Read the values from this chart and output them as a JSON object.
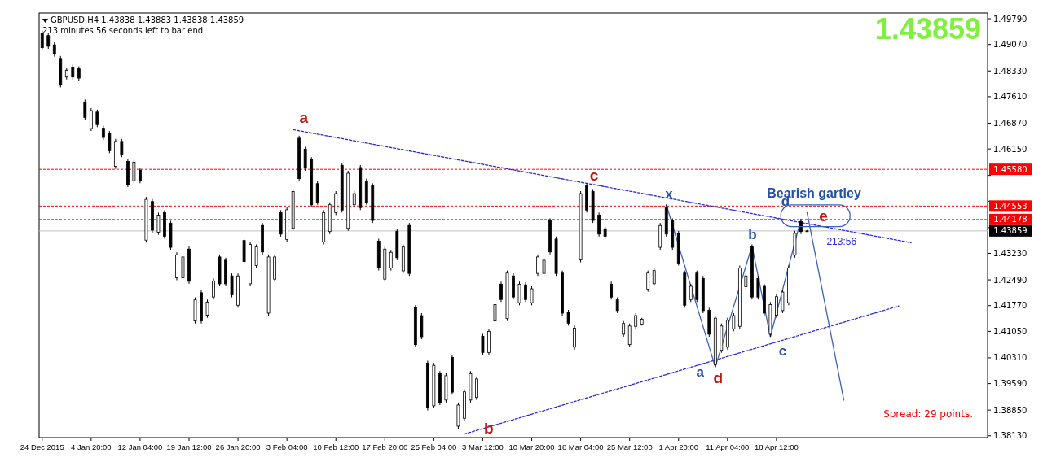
{
  "chart_data": {
    "type": "candlestick",
    "title": "GBPUSD,H4 1.43838 1.43883 1.43838 1.43859",
    "subtitle": "213 minutes 56 seconds left to bar end",
    "color": "#000000",
    "categories": [
      "24 Dec 2015",
      null,
      null,
      null,
      null,
      null,
      null,
      null,
      "4 Jan 20:00",
      null,
      null,
      null,
      null,
      null,
      null,
      null,
      "12 Jan 04:00",
      null,
      null,
      null,
      null,
      null,
      null,
      null,
      "19 Jan 12:00",
      null,
      null,
      null,
      null,
      null,
      null,
      null,
      "26 Jan 20:00",
      null,
      null,
      null,
      null,
      null,
      null,
      null,
      "3 Feb 04:00",
      null,
      null,
      null,
      null,
      null,
      null,
      null,
      "10 Feb 12:00",
      null,
      null,
      null,
      null,
      null,
      null,
      null,
      "17 Feb 20:00",
      null,
      null,
      null,
      null,
      null,
      null,
      null,
      "25 Feb 04:00",
      null,
      null,
      null,
      null,
      null,
      null,
      null,
      "3 Mar 12:00",
      null,
      null,
      null,
      null,
      null,
      null,
      null,
      "10 Mar 20:00",
      null,
      null,
      null,
      null,
      null,
      null,
      null,
      "18 Mar 04:00",
      null,
      null,
      null,
      null,
      null,
      null,
      null,
      "25 Mar 12:00",
      null,
      null,
      null,
      null,
      null,
      null,
      null,
      "1 Apr 20:00",
      null,
      null,
      null,
      null,
      null,
      null,
      null,
      "11 Apr 04:00",
      null,
      null,
      null,
      null,
      null,
      null,
      null,
      "18 Apr 12:00",
      null,
      null,
      null,
      null,
      null,
      null,
      null,
      null,
      null,
      null,
      null,
      null,
      null,
      null,
      null,
      null,
      null,
      null,
      null,
      null,
      null,
      null,
      null,
      null,
      null,
      null,
      null,
      null,
      null,
      null,
      null,
      null,
      null,
      null
    ],
    "ohlc": [
      [
        1.4939,
        1.4946,
        1.4891,
        1.4898
      ],
      [
        1.4932,
        1.4939,
        1.4895,
        1.4902
      ],
      [
        1.4906,
        1.4913,
        1.4873,
        1.488
      ],
      [
        1.4868,
        1.4875,
        1.4787,
        1.4794
      ],
      [
        1.4816,
        1.4842,
        1.4809,
        1.4835
      ],
      [
        1.4844,
        1.4851,
        1.4809,
        1.4816
      ],
      [
        1.4839,
        1.4846,
        1.4806,
        1.4813
      ],
      [
        1.4746,
        1.4753,
        1.4696,
        1.4703
      ],
      [
        1.4672,
        1.4729,
        1.4665,
        1.4722
      ],
      [
        1.4718,
        1.4725,
        1.4676,
        1.4683
      ],
      [
        1.4673,
        1.468,
        1.464,
        1.4647
      ],
      [
        1.4658,
        1.4665,
        1.4603,
        1.461
      ],
      [
        1.4566,
        1.4643,
        1.4559,
        1.4636
      ],
      [
        1.4636,
        1.4643,
        1.4592,
        1.4599
      ],
      [
        1.458,
        1.4587,
        1.4508,
        1.4515
      ],
      [
        1.4526,
        1.4585,
        1.4519,
        1.4578
      ],
      [
        1.4556,
        1.4563,
        1.4519,
        1.4526
      ],
      [
        1.436,
        1.4481,
        1.4353,
        1.4474
      ],
      [
        1.4468,
        1.4475,
        1.4381,
        1.4388
      ],
      [
        1.4382,
        1.4437,
        1.4375,
        1.443
      ],
      [
        1.4437,
        1.4444,
        1.4364,
        1.4371
      ],
      [
        1.4407,
        1.4414,
        1.4333,
        1.434
      ],
      [
        1.4255,
        1.4326,
        1.4248,
        1.4319
      ],
      [
        1.4255,
        1.432,
        1.4248,
        1.4313
      ],
      [
        1.4335,
        1.4342,
        1.4238,
        1.4245
      ],
      [
        1.4134,
        1.42,
        1.4127,
        1.4193
      ],
      [
        1.4213,
        1.422,
        1.4127,
        1.4134
      ],
      [
        1.415,
        1.4194,
        1.4143,
        1.4187
      ],
      [
        1.4201,
        1.4253,
        1.4194,
        1.4246
      ],
      [
        1.4313,
        1.432,
        1.4231,
        1.4238
      ],
      [
        1.4304,
        1.4311,
        1.4231,
        1.4238
      ],
      [
        1.426,
        1.4267,
        1.42,
        1.4207
      ],
      [
        1.4178,
        1.4267,
        1.4171,
        1.426
      ],
      [
        1.4359,
        1.4366,
        1.4293,
        1.43
      ],
      [
        1.4238,
        1.4355,
        1.4231,
        1.4348
      ],
      [
        1.4289,
        1.4348,
        1.4282,
        1.4341
      ],
      [
        1.4401,
        1.4408,
        1.432,
        1.4327
      ],
      [
        1.4156,
        1.432,
        1.4149,
        1.4313
      ],
      [
        1.4251,
        1.432,
        1.4244,
        1.4313
      ],
      [
        1.4437,
        1.4444,
        1.437,
        1.4377
      ],
      [
        1.4362,
        1.4452,
        1.4355,
        1.4445
      ],
      [
        1.4393,
        1.4503,
        1.4386,
        1.4496
      ],
      [
        1.4645,
        1.4652,
        1.4525,
        1.4532
      ],
      [
        1.4614,
        1.4621,
        1.4554,
        1.4561
      ],
      [
        1.4585,
        1.4592,
        1.4452,
        1.4459
      ],
      [
        1.4518,
        1.4525,
        1.4459,
        1.4466
      ],
      [
        1.4355,
        1.4444,
        1.4348,
        1.4437
      ],
      [
        1.4384,
        1.4466,
        1.4377,
        1.4459
      ],
      [
        1.4437,
        1.4497,
        1.443,
        1.449
      ],
      [
        1.4569,
        1.4576,
        1.4437,
        1.4444
      ],
      [
        1.4393,
        1.4554,
        1.4386,
        1.4547
      ],
      [
        1.4459,
        1.4497,
        1.4452,
        1.449
      ],
      [
        1.4563,
        1.457,
        1.4444,
        1.4451
      ],
      [
        1.4525,
        1.4532,
        1.4459,
        1.4466
      ],
      [
        1.4512,
        1.4519,
        1.4408,
        1.4415
      ],
      [
        1.4357,
        1.4364,
        1.4275,
        1.4282
      ],
      [
        1.4251,
        1.4342,
        1.4244,
        1.4335
      ],
      [
        1.4282,
        1.4333,
        1.4275,
        1.4326
      ],
      [
        1.4385,
        1.4392,
        1.4304,
        1.4311
      ],
      [
        1.4274,
        1.4348,
        1.4267,
        1.4341
      ],
      [
        1.4401,
        1.4408,
        1.426,
        1.4267
      ],
      [
        1.4171,
        1.4178,
        1.4061,
        1.4068
      ],
      [
        1.4149,
        1.4156,
        1.4083,
        1.409
      ],
      [
        1.4016,
        1.4023,
        1.3884,
        1.3891
      ],
      [
        1.3897,
        1.4017,
        1.389,
        1.401
      ],
      [
        1.3987,
        1.3994,
        1.3899,
        1.3906
      ],
      [
        1.3913,
        1.3988,
        1.3906,
        1.3981
      ],
      [
        1.4032,
        1.4039,
        1.3928,
        1.3935
      ],
      [
        1.384,
        1.3906,
        1.3833,
        1.3899
      ],
      [
        1.3862,
        1.3943,
        1.3855,
        1.3936
      ],
      [
        1.3913,
        1.3994,
        1.3906,
        1.3987
      ],
      [
        1.392,
        1.3979,
        1.3913,
        1.3972
      ],
      [
        1.4091,
        1.4098,
        1.4039,
        1.4046
      ],
      [
        1.4046,
        1.4112,
        1.4039,
        1.4105
      ],
      [
        1.4134,
        1.4187,
        1.4127,
        1.418
      ],
      [
        1.4237,
        1.4244,
        1.4187,
        1.4194
      ],
      [
        1.4141,
        1.4275,
        1.4134,
        1.4268
      ],
      [
        1.426,
        1.4267,
        1.4194,
        1.4201
      ],
      [
        1.4185,
        1.4244,
        1.4178,
        1.4237
      ],
      [
        1.4235,
        1.4242,
        1.4187,
        1.4194
      ],
      [
        1.4185,
        1.4231,
        1.4178,
        1.4224
      ],
      [
        1.4267,
        1.432,
        1.426,
        1.4313
      ],
      [
        1.4267,
        1.4311,
        1.426,
        1.4304
      ],
      [
        1.4414,
        1.4421,
        1.432,
        1.4327
      ],
      [
        1.4363,
        1.437,
        1.426,
        1.4267
      ],
      [
        1.4268,
        1.4275,
        1.4149,
        1.4156
      ],
      [
        1.4158,
        1.4165,
        1.4121,
        1.4128
      ],
      [
        1.4061,
        1.4121,
        1.4054,
        1.4114
      ],
      [
        1.4305,
        1.4497,
        1.4298,
        1.449
      ],
      [
        1.4512,
        1.4519,
        1.4437,
        1.4444
      ],
      [
        1.4496,
        1.4503,
        1.4408,
        1.4415
      ],
      [
        1.443,
        1.4437,
        1.437,
        1.4377
      ],
      [
        1.4392,
        1.4399,
        1.4364,
        1.4371
      ],
      [
        1.4237,
        1.4244,
        1.4194,
        1.4201
      ],
      [
        1.4193,
        1.42,
        1.4156,
        1.4163
      ],
      [
        1.4097,
        1.4134,
        1.409,
        1.4127
      ],
      [
        1.4068,
        1.4127,
        1.4061,
        1.412
      ],
      [
        1.4119,
        1.4156,
        1.4112,
        1.4149
      ],
      [
        1.4125,
        1.4143,
        1.4121,
        1.4139
      ],
      [
        1.4223,
        1.4275,
        1.4216,
        1.4268
      ],
      [
        1.4238,
        1.4282,
        1.4231,
        1.4275
      ],
      [
        1.434,
        1.4408,
        1.4333,
        1.4401
      ],
      [
        1.4452,
        1.4459,
        1.437,
        1.4377
      ],
      [
        1.4414,
        1.4421,
        1.4333,
        1.434
      ],
      [
        1.4379,
        1.4386,
        1.4289,
        1.4296
      ],
      [
        1.4268,
        1.4275,
        1.4171,
        1.4178
      ],
      [
        1.4194,
        1.4238,
        1.4187,
        1.4231
      ],
      [
        1.4268,
        1.4275,
        1.4187,
        1.4194
      ],
      [
        1.4253,
        1.426,
        1.4156,
        1.4163
      ],
      [
        1.4164,
        1.4171,
        1.409,
        1.4097
      ],
      [
        1.4012,
        1.4149,
        1.4005,
        1.4142
      ],
      [
        1.4052,
        1.4127,
        1.4045,
        1.412
      ],
      [
        1.4061,
        1.4143,
        1.4054,
        1.4136
      ],
      [
        1.4112,
        1.4156,
        1.4105,
        1.4149
      ],
      [
        1.4119,
        1.4289,
        1.4112,
        1.4282
      ],
      [
        1.423,
        1.4267,
        1.4223,
        1.426
      ],
      [
        1.4341,
        1.4348,
        1.4194,
        1.4201
      ],
      [
        1.4253,
        1.426,
        1.4194,
        1.4201
      ],
      [
        1.4231,
        1.4238,
        1.4149,
        1.4156
      ],
      [
        1.4097,
        1.4187,
        1.409,
        1.418
      ],
      [
        1.415,
        1.4209,
        1.4143,
        1.4202
      ],
      [
        1.4163,
        1.4222,
        1.4156,
        1.4215
      ],
      [
        1.4185,
        1.4289,
        1.4178,
        1.4282
      ],
      [
        1.4318,
        1.4386,
        1.4311,
        1.4379
      ],
      [
        1.4412,
        1.4419,
        1.4377,
        1.4384
      ],
      [
        1.43838,
        1.43883,
        1.43838,
        1.43859
      ],
      null,
      null,
      null,
      null,
      null,
      null,
      null,
      null,
      null,
      null,
      null,
      null,
      null,
      null,
      null,
      null,
      null,
      null,
      null,
      null,
      null,
      null,
      null,
      null,
      null,
      null,
      null,
      null,
      null
    ],
    "series": [
      {
        "type": "line",
        "color": "#2a2ae0",
        "line_style": "dashed",
        "values": [
          null,
          null,
          null,
          null,
          null,
          null,
          null,
          null,
          null,
          null,
          null,
          null,
          null,
          null,
          null,
          null,
          null,
          null,
          null,
          null,
          null,
          null,
          null,
          null,
          null,
          null,
          null,
          null,
          null,
          null,
          null,
          null,
          null,
          null,
          null,
          null,
          null,
          null,
          null,
          null,
          null,
          1.4669,
          null,
          null,
          null,
          null,
          null,
          null,
          null,
          null,
          null,
          null,
          null,
          null,
          null,
          null,
          null,
          null,
          null,
          null,
          null,
          null,
          null,
          null,
          null,
          null,
          null,
          null,
          null,
          null,
          null,
          null,
          null,
          null,
          null,
          null,
          null,
          null,
          null,
          null,
          null,
          null,
          null,
          null,
          null,
          null,
          null,
          null,
          null,
          null,
          null,
          null,
          null,
          null,
          null,
          null,
          null,
          null,
          null,
          null,
          null,
          null,
          null,
          null,
          null,
          null,
          null,
          null,
          null,
          null,
          null,
          null,
          null,
          null,
          null,
          null,
          null,
          null,
          null,
          null,
          null,
          null,
          null,
          null,
          null,
          null,
          null,
          null,
          null,
          null,
          null,
          null,
          null,
          null,
          null,
          null,
          null,
          null,
          null,
          null,
          null,
          null,
          1.4353,
          null,
          null,
          null,
          null,
          null,
          null,
          null,
          null,
          null,
          null,
          null,
          null
        ]
      },
      {
        "type": "line",
        "color": "#2a2ae0",
        "line_style": "dashed",
        "values": [
          null,
          null,
          null,
          null,
          null,
          null,
          null,
          null,
          null,
          null,
          null,
          null,
          null,
          null,
          null,
          null,
          null,
          null,
          null,
          null,
          null,
          null,
          null,
          null,
          null,
          null,
          null,
          null,
          null,
          null,
          null,
          null,
          null,
          null,
          null,
          null,
          null,
          null,
          null,
          null,
          null,
          null,
          null,
          null,
          null,
          null,
          null,
          null,
          null,
          null,
          null,
          null,
          null,
          null,
          null,
          null,
          null,
          null,
          null,
          null,
          null,
          null,
          null,
          null,
          null,
          null,
          null,
          null,
          null,
          1.3818,
          null,
          null,
          null,
          null,
          null,
          null,
          null,
          null,
          null,
          null,
          null,
          null,
          null,
          null,
          null,
          null,
          null,
          null,
          null,
          null,
          null,
          null,
          null,
          null,
          null,
          null,
          null,
          null,
          null,
          null,
          null,
          null,
          null,
          null,
          null,
          null,
          null,
          null,
          null,
          null,
          null,
          null,
          null,
          null,
          null,
          null,
          null,
          null,
          null,
          null,
          null,
          null,
          null,
          null,
          null,
          null,
          null,
          null,
          null,
          null,
          null,
          null,
          null,
          null,
          null,
          null,
          null,
          null,
          null,
          null,
          1.4176,
          null,
          null,
          null,
          null,
          null,
          null,
          null,
          null,
          null,
          null,
          null,
          null,
          null,
          null
        ]
      },
      {
        "type": "line",
        "color": "#3a62b8",
        "line_style": "solid",
        "values": [
          null,
          null,
          null,
          null,
          null,
          null,
          null,
          null,
          null,
          null,
          null,
          null,
          null,
          null,
          null,
          null,
          null,
          null,
          null,
          null,
          null,
          null,
          null,
          null,
          null,
          null,
          null,
          null,
          null,
          null,
          null,
          null,
          null,
          null,
          null,
          null,
          null,
          null,
          null,
          null,
          null,
          null,
          null,
          null,
          null,
          null,
          null,
          null,
          null,
          null,
          null,
          null,
          null,
          null,
          null,
          null,
          null,
          null,
          null,
          null,
          null,
          null,
          null,
          null,
          null,
          null,
          null,
          null,
          null,
          null,
          null,
          null,
          null,
          null,
          null,
          null,
          null,
          null,
          null,
          null,
          null,
          null,
          null,
          null,
          null,
          null,
          null,
          null,
          null,
          null,
          null,
          null,
          null,
          null,
          null,
          null,
          null,
          null,
          null,
          null,
          null,
          null,
          1.4459,
          null,
          null,
          null,
          null,
          null,
          null,
          null,
          1.4005,
          null,
          null,
          null,
          null,
          null,
          1.4344,
          null,
          null,
          1.409,
          null,
          null,
          null,
          null,
          1.4419,
          null,
          null,
          null,
          null,
          null,
          null,
          null,
          null,
          null,
          null,
          null,
          null,
          null,
          null,
          null,
          null,
          null,
          null,
          null,
          null,
          null,
          null,
          null,
          null,
          null,
          null,
          null,
          null,
          null,
          null
        ]
      },
      {
        "type": "line",
        "color": "#3a62b8",
        "line_style": "solid",
        "values": [
          null,
          null,
          null,
          null,
          null,
          null,
          null,
          null,
          null,
          null,
          null,
          null,
          null,
          null,
          null,
          null,
          null,
          null,
          null,
          null,
          null,
          null,
          null,
          null,
          null,
          null,
          null,
          null,
          null,
          null,
          null,
          null,
          null,
          null,
          null,
          null,
          null,
          null,
          null,
          null,
          null,
          null,
          null,
          null,
          null,
          null,
          null,
          null,
          null,
          null,
          null,
          null,
          null,
          null,
          null,
          null,
          null,
          null,
          null,
          null,
          null,
          null,
          null,
          null,
          null,
          null,
          null,
          null,
          null,
          null,
          null,
          null,
          null,
          null,
          null,
          null,
          null,
          null,
          null,
          null,
          null,
          null,
          null,
          null,
          null,
          null,
          null,
          null,
          null,
          null,
          null,
          null,
          null,
          null,
          null,
          null,
          null,
          null,
          null,
          null,
          null,
          null,
          null,
          null,
          null,
          null,
          null,
          null,
          null,
          null,
          null,
          null,
          null,
          null,
          null,
          null,
          null,
          null,
          null,
          null,
          null,
          null,
          null,
          null,
          null,
          1.4437,
          null,
          null,
          null,
          null,
          null,
          1.3913,
          null,
          null,
          null,
          null,
          null,
          null,
          null,
          null,
          null,
          null,
          null,
          null,
          null,
          null,
          null,
          null,
          null,
          null,
          null,
          null,
          null,
          null,
          null
        ]
      }
    ],
    "ref_lines": [
      {
        "axis": "y",
        "value": 1.4558,
        "label": "1.45580",
        "color": "#ff0000",
        "line_style": "dashed"
      },
      {
        "axis": "y",
        "value": 1.44553,
        "label": "1.44553",
        "color": "#ff0000",
        "line_style": "dashed"
      },
      {
        "axis": "y",
        "value": 1.44178,
        "label": "1.44178",
        "color": "#ff0000",
        "line_style": "dashed"
      },
      {
        "axis": "y",
        "value": 1.43859,
        "label": "1.43859",
        "color": "#c0c0c0",
        "line_style": "solid"
      }
    ],
    "annotations": [
      "a",
      "b",
      "c",
      "d",
      "e",
      "x",
      "a",
      "b",
      "c",
      "d",
      "Bearish gartley",
      "213:56",
      "1.43859",
      "Spread: 29 points."
    ],
    "ylim": [
      1.3808,
      1.4995
    ],
    "yticks": [
      {
        "value": 1.4979,
        "label": "1.49790"
      },
      {
        "value": 1.4907,
        "label": "1.49070"
      },
      {
        "value": 1.4833,
        "label": "1.48330"
      },
      {
        "value": 1.4761,
        "label": "1.47610"
      },
      {
        "value": 1.4687,
        "label": "1.46870"
      },
      {
        "value": 1.4615,
        "label": "1.46150"
      },
      {
        "value": 1.4541,
        "label": null
      },
      {
        "value": 1.4469,
        "label": null
      },
      {
        "value": 1.4395,
        "label": null
      },
      {
        "value": 1.4323,
        "label": "1.43230"
      },
      {
        "value": 1.4249,
        "label": "1.42490"
      },
      {
        "value": 1.4177,
        "label": "1.41770"
      },
      {
        "value": 1.4105,
        "label": "1.41050"
      },
      {
        "value": 1.4031,
        "label": "1.40310"
      },
      {
        "value": 1.3959,
        "label": "1.39590"
      },
      {
        "value": 1.3885,
        "label": "1.38850"
      },
      {
        "value": 1.3813,
        "label": "1.38130"
      }
    ],
    "grid": false
  }
}
